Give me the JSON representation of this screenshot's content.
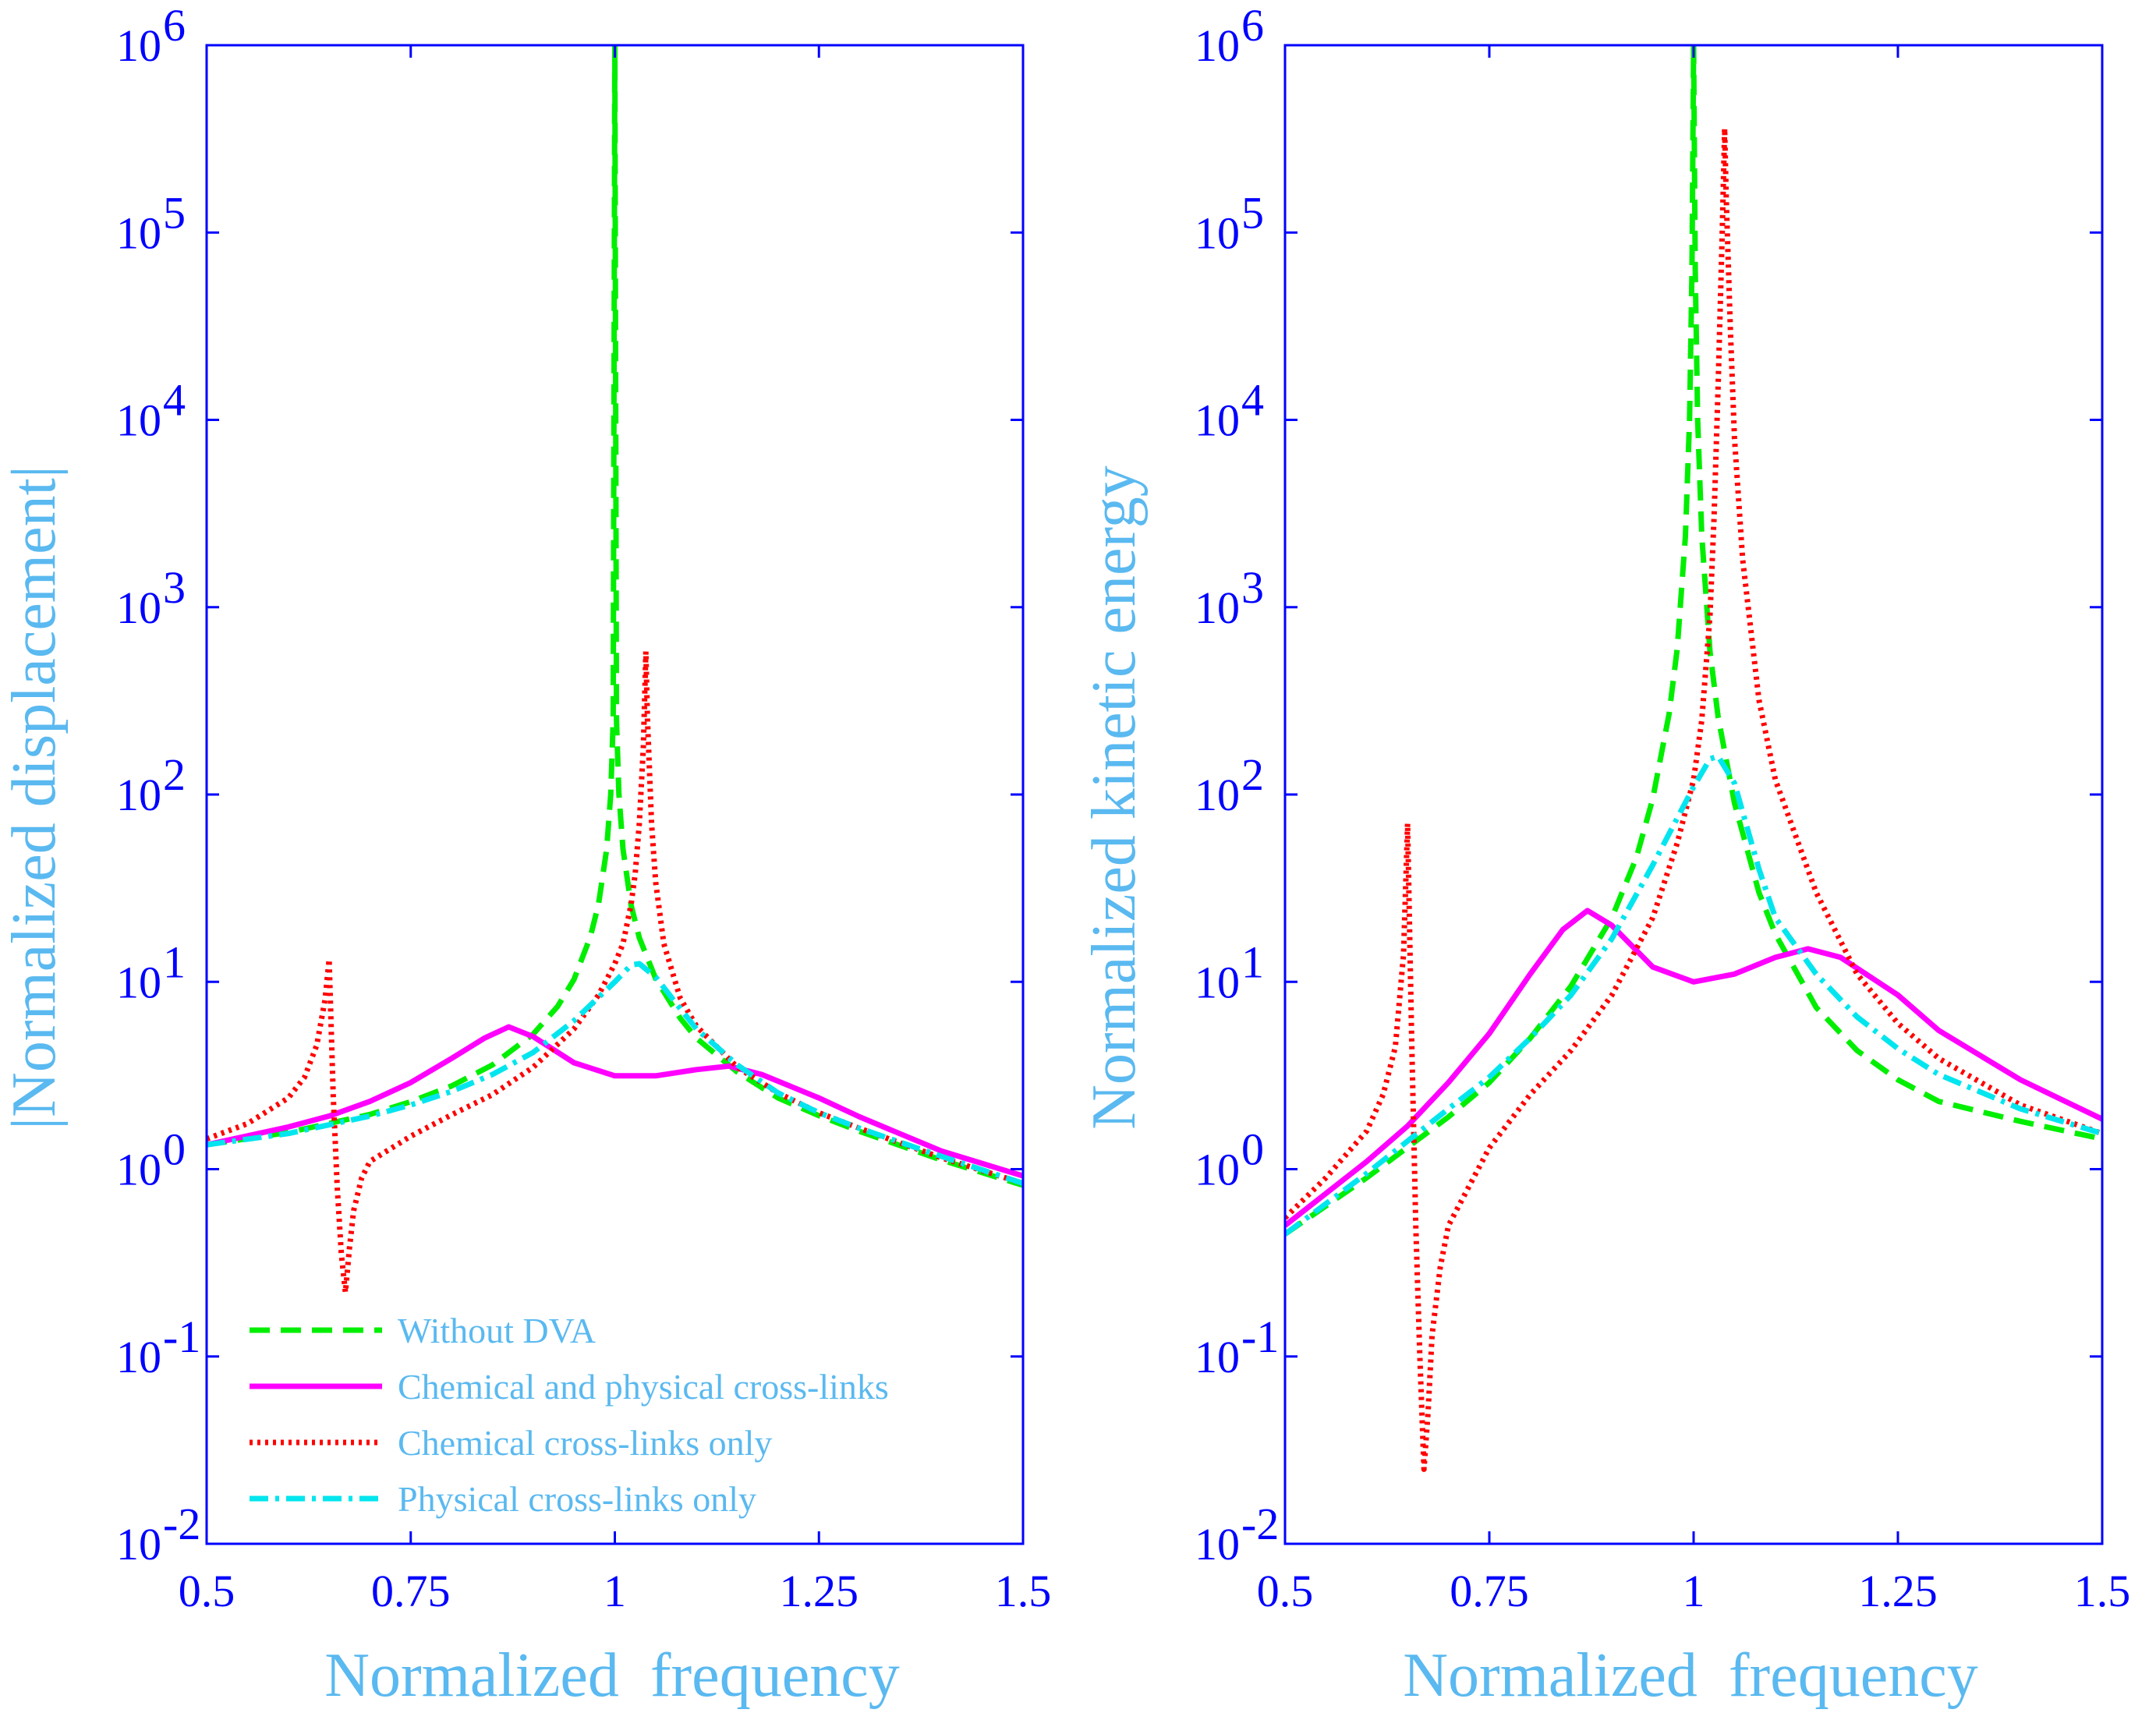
{
  "chart_data": [
    {
      "type": "line",
      "id": "left",
      "xlabel": "Normalized  frequency",
      "ylabel": "|Normalized displacement|",
      "xlim": [
        0.5,
        1.5
      ],
      "ylim": [
        0.01,
        1000000
      ],
      "yscale": "log",
      "x_ticks": [
        0.5,
        0.75,
        1,
        1.25,
        1.5
      ],
      "x_tick_labels": [
        "0.5",
        "0.75",
        "1",
        "1.25",
        "1.5"
      ],
      "y_tick_labels": [
        {
          "base": "10",
          "exp": "-2"
        },
        {
          "base": "10",
          "exp": "-1"
        },
        {
          "base": "10",
          "exp": "0"
        },
        {
          "base": "10",
          "exp": "1"
        },
        {
          "base": "10",
          "exp": "2"
        },
        {
          "base": "10",
          "exp": "3"
        },
        {
          "base": "10",
          "exp": "4"
        },
        {
          "base": "10",
          "exp": "5"
        },
        {
          "base": "10",
          "exp": "6"
        }
      ],
      "legend": {
        "position": "bottom-left",
        "entries": [
          "Without DVA",
          "Chemical and physical cross-links",
          "Chemical cross-links only",
          "Physical cross-links only"
        ]
      },
      "series": [
        {
          "name": "Without DVA",
          "color": "#00ee00",
          "style": "dashed",
          "x": [
            0.5,
            0.6,
            0.7,
            0.75,
            0.8,
            0.85,
            0.9,
            0.93,
            0.95,
            0.97,
            0.98,
            0.99,
            0.995,
            0.998,
            1.0,
            1.002,
            1.005,
            1.01,
            1.02,
            1.03,
            1.05,
            1.08,
            1.1,
            1.15,
            1.2,
            1.25,
            1.3,
            1.4,
            1.5
          ],
          "y": [
            1.35,
            1.57,
            1.96,
            2.29,
            2.78,
            3.6,
            5.26,
            7.4,
            10.3,
            17.4,
            26,
            51,
            101,
            251,
            1000000,
            251,
            101,
            51,
            25.6,
            17.2,
            10.4,
            6.4,
            5.0,
            3.3,
            2.4,
            1.93,
            1.59,
            1.12,
            0.82
          ]
        },
        {
          "name": "Chemical and physical cross-links",
          "color": "#ff00ff",
          "style": "solid",
          "x": [
            0.5,
            0.6,
            0.65,
            0.7,
            0.75,
            0.8,
            0.84,
            0.87,
            0.9,
            0.95,
            1.0,
            1.05,
            1.1,
            1.14,
            1.18,
            1.25,
            1.3,
            1.4,
            1.5
          ],
          "y": [
            1.35,
            1.68,
            1.92,
            2.3,
            2.9,
            3.9,
            5.0,
            5.75,
            5.1,
            3.7,
            3.15,
            3.15,
            3.4,
            3.55,
            3.2,
            2.4,
            1.9,
            1.25,
            0.92
          ]
        },
        {
          "name": "Chemical cross-links only",
          "color": "#ff0000",
          "style": "dotted",
          "x": [
            0.5,
            0.55,
            0.6,
            0.62,
            0.635,
            0.645,
            0.65,
            0.655,
            0.66,
            0.665,
            0.67,
            0.675,
            0.68,
            0.69,
            0.7,
            0.75,
            0.8,
            0.85,
            0.9,
            0.95,
            0.98,
            1.0,
            1.01,
            1.02,
            1.025,
            1.03,
            1.035,
            1.038,
            1.04,
            1.045,
            1.05,
            1.06,
            1.08,
            1.1,
            1.15,
            1.2,
            1.25,
            1.3,
            1.4,
            1.5
          ],
          "y": [
            1.45,
            1.75,
            2.4,
            3.1,
            4.6,
            8.0,
            13.2,
            2.5,
            0.8,
            0.35,
            0.22,
            0.38,
            0.6,
            0.9,
            1.1,
            1.5,
            1.95,
            2.5,
            3.5,
            5.6,
            8.5,
            12.5,
            16,
            26,
            38,
            70,
            180,
            580,
            250,
            70,
            34,
            16,
            8.2,
            5.8,
            3.5,
            2.55,
            2.0,
            1.65,
            1.15,
            0.84
          ]
        },
        {
          "name": "Physical cross-links only",
          "color": "#00e5ee",
          "style": "dash-dot",
          "x": [
            0.5,
            0.6,
            0.7,
            0.75,
            0.8,
            0.85,
            0.9,
            0.95,
            1.0,
            1.02,
            1.03,
            1.05,
            1.08,
            1.1,
            1.15,
            1.2,
            1.25,
            1.3,
            1.4,
            1.5
          ],
          "y": [
            1.35,
            1.55,
            1.92,
            2.2,
            2.6,
            3.2,
            4.2,
            6.2,
            10.0,
            12.3,
            12.5,
            10.6,
            7.2,
            5.6,
            3.6,
            2.55,
            2.0,
            1.65,
            1.17,
            0.84
          ]
        }
      ]
    },
    {
      "type": "line",
      "id": "right",
      "xlabel": "Normalized  frequency",
      "ylabel": "Normalized kinetic energy",
      "xlim": [
        0.5,
        1.5
      ],
      "ylim": [
        0.01,
        1000000
      ],
      "yscale": "log",
      "x_ticks": [
        0.5,
        0.75,
        1,
        1.25,
        1.5
      ],
      "x_tick_labels": [
        "0.5",
        "0.75",
        "1",
        "1.25",
        "1.5"
      ],
      "y_tick_labels": [
        {
          "base": "10",
          "exp": "-2"
        },
        {
          "base": "10",
          "exp": "-1"
        },
        {
          "base": "10",
          "exp": "0"
        },
        {
          "base": "10",
          "exp": "1"
        },
        {
          "base": "10",
          "exp": "2"
        },
        {
          "base": "10",
          "exp": "3"
        },
        {
          "base": "10",
          "exp": "4"
        },
        {
          "base": "10",
          "exp": "5"
        },
        {
          "base": "10",
          "exp": "6"
        }
      ],
      "series": [
        {
          "name": "Without DVA",
          "color": "#00ee00",
          "style": "dashed",
          "x": [
            0.5,
            0.6,
            0.7,
            0.75,
            0.8,
            0.85,
            0.9,
            0.93,
            0.95,
            0.97,
            0.98,
            0.99,
            0.995,
            0.998,
            1.0,
            1.002,
            1.005,
            1.01,
            1.02,
            1.03,
            1.05,
            1.08,
            1.1,
            1.15,
            1.2,
            1.25,
            1.3,
            1.4,
            1.5
          ],
          "y": [
            0.45,
            0.9,
            1.9,
            2.9,
            5.0,
            9.5,
            22,
            46,
            95,
            270,
            600,
            2400,
            10000,
            63000,
            1000000,
            63000,
            10000,
            2400,
            580,
            260,
            90,
            30,
            18,
            7.3,
            4.3,
            3.0,
            2.3,
            1.8,
            1.45
          ]
        },
        {
          "name": "Chemical and physical cross-links",
          "color": "#ff00ff",
          "style": "solid",
          "x": [
            0.5,
            0.6,
            0.65,
            0.7,
            0.75,
            0.8,
            0.84,
            0.87,
            0.9,
            0.95,
            1.0,
            1.05,
            1.1,
            1.14,
            1.18,
            1.25,
            1.3,
            1.4,
            1.5
          ],
          "y": [
            0.5,
            1.1,
            1.7,
            2.9,
            5.3,
            11,
            19,
            24,
            20,
            12,
            10,
            11,
            13.5,
            15,
            13.5,
            8.5,
            5.5,
            3.0,
            1.85
          ]
        },
        {
          "name": "Chemical cross-links only",
          "color": "#ff0000",
          "style": "dotted",
          "x": [
            0.5,
            0.55,
            0.6,
            0.62,
            0.635,
            0.645,
            0.65,
            0.655,
            0.66,
            0.665,
            0.67,
            0.675,
            0.68,
            0.69,
            0.7,
            0.75,
            0.8,
            0.85,
            0.9,
            0.95,
            0.98,
            1.0,
            1.01,
            1.02,
            1.025,
            1.03,
            1.035,
            1.038,
            1.04,
            1.045,
            1.05,
            1.06,
            1.08,
            1.1,
            1.15,
            1.2,
            1.25,
            1.3,
            1.4,
            1.5
          ],
          "y": [
            0.55,
            0.9,
            1.6,
            2.5,
            4.5,
            14,
            70,
            5.0,
            0.5,
            0.1,
            0.025,
            0.05,
            0.13,
            0.3,
            0.5,
            1.3,
            2.5,
            4.3,
            8.5,
            22,
            55,
            120,
            250,
            900,
            3000,
            15000,
            100000,
            360000,
            150000,
            30000,
            8000,
            1800,
            320,
            120,
            30,
            11,
            6.0,
            3.9,
            2.2,
            1.55
          ]
        },
        {
          "name": "Physical cross-links only",
          "color": "#00e5ee",
          "style": "dash-dot",
          "x": [
            0.5,
            0.6,
            0.7,
            0.75,
            0.8,
            0.85,
            0.9,
            0.95,
            1.0,
            1.02,
            1.03,
            1.05,
            1.08,
            1.1,
            1.15,
            1.2,
            1.25,
            1.3,
            1.4,
            1.5
          ],
          "y": [
            0.45,
            0.95,
            2.1,
            3.1,
            5.0,
            8.5,
            17,
            42,
            110,
            155,
            160,
            115,
            40,
            22,
            11,
            6.5,
            4.4,
            3.2,
            2.1,
            1.55
          ]
        }
      ]
    }
  ]
}
